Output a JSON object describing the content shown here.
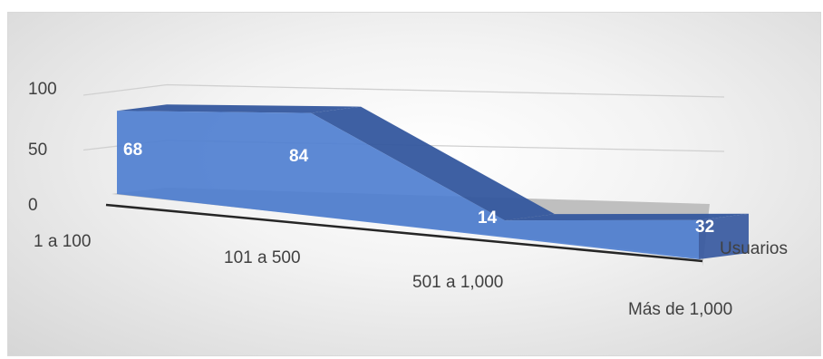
{
  "chart_data": {
    "type": "area",
    "categories": [
      "1 a 100",
      "101 a 500",
      "501 a 1,000",
      "Más de 1,000"
    ],
    "series": [
      {
        "name": "Usuarios",
        "values": [
          68,
          84,
          14,
          32
        ]
      }
    ],
    "ylim": [
      0,
      100
    ],
    "y_ticks": [
      "0",
      "50",
      "100"
    ],
    "grid": true,
    "legend": "none",
    "colors": {
      "front": "#4f7fd0",
      "top": "#34579e",
      "floor": "#bfbfbf",
      "grid": "#d0d0d0",
      "text": "#404040",
      "data_label": "#ffffff"
    }
  }
}
